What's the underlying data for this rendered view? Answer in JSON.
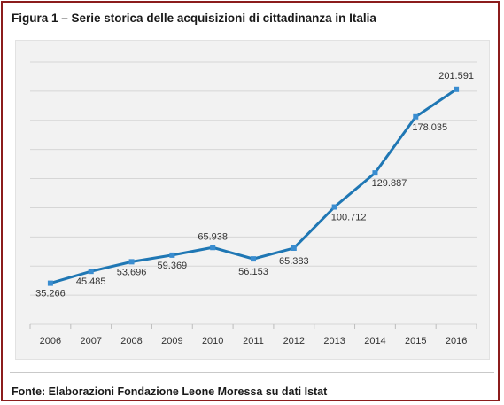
{
  "figure": {
    "title": "Figura 1 – Serie storica delle acquisizioni di cittadinanza in Italia",
    "source": "Fonte: Elaborazioni Fondazione Leone Moressa su dati Istat"
  },
  "colors": {
    "frame": "#8b1c1c",
    "line": "#1f77b4",
    "marker": "#3a8dd0",
    "panel": "#f2f2f2",
    "grid": "#d6d6d6"
  },
  "chart_data": {
    "type": "line",
    "x": [
      "2006",
      "2007",
      "2008",
      "2009",
      "2010",
      "2011",
      "2012",
      "2013",
      "2014",
      "2015",
      "2016"
    ],
    "values": [
      35266,
      45485,
      53696,
      59369,
      65938,
      56153,
      65383,
      100712,
      129887,
      178035,
      201591
    ],
    "data_labels": [
      "35.266",
      "45.485",
      "53.696",
      "59.369",
      "65.938",
      "56.153",
      "65.383",
      "100.712",
      "129.887",
      "178.035",
      "201.591"
    ],
    "ylim": [
      0,
      225000
    ],
    "grid": true,
    "legend": "none"
  }
}
